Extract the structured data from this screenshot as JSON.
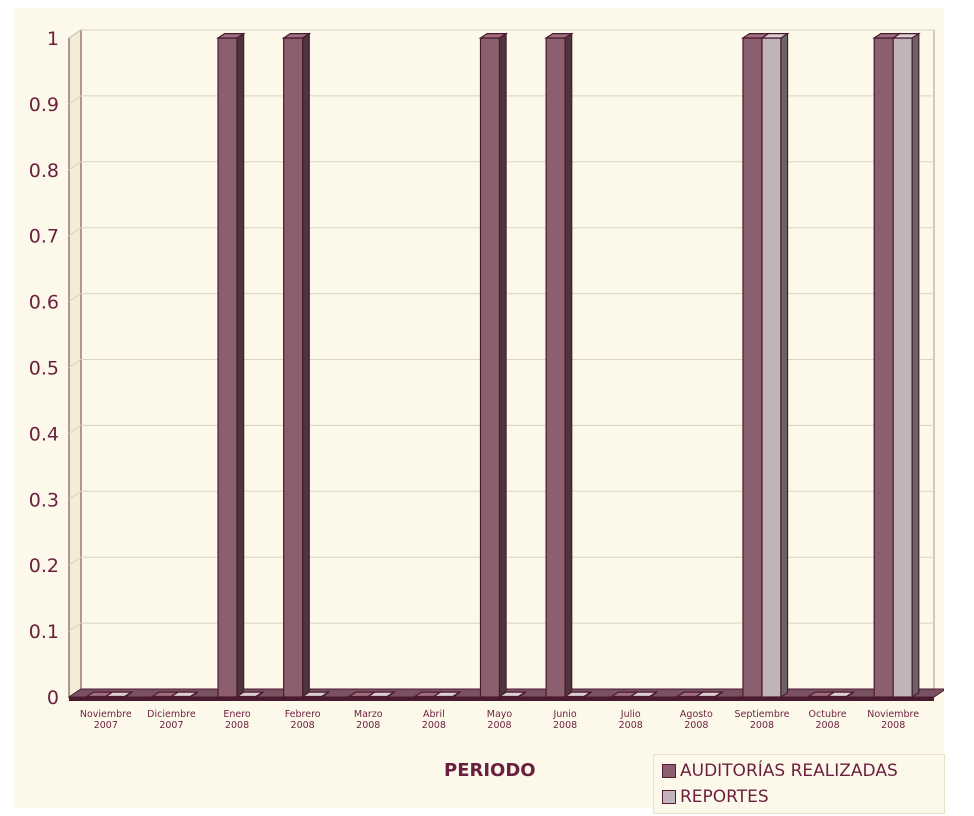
{
  "chart_data": {
    "type": "bar",
    "title": "",
    "xlabel": "PERIODO",
    "ylabel": "",
    "ylim": [
      0,
      1
    ],
    "yticks": [
      "0",
      "0.1",
      "0.2",
      "0.3",
      "0.4",
      "0.5",
      "0.6",
      "0.7",
      "0.8",
      "0.9",
      "1"
    ],
    "categories": [
      [
        "Noviembre",
        "2007"
      ],
      [
        "Diciembre",
        "2007"
      ],
      [
        "Enero",
        "2008"
      ],
      [
        "Febrero",
        "2008"
      ],
      [
        "Marzo",
        "2008"
      ],
      [
        "Abril",
        "2008"
      ],
      [
        "Mayo",
        "2008"
      ],
      [
        "Junio",
        "2008"
      ],
      [
        "Julio",
        "2008"
      ],
      [
        "Agosto",
        "2008"
      ],
      [
        "Septiembre",
        "2008"
      ],
      [
        "Octubre",
        "2008"
      ],
      [
        "Noviembre",
        "2008"
      ]
    ],
    "series": [
      {
        "name": "AUDITORÍAS REALIZADAS",
        "color": "#8c5f6f",
        "values": [
          0,
          0,
          1,
          1,
          0,
          0,
          1,
          1,
          0,
          0,
          1,
          0,
          1
        ]
      },
      {
        "name": "REPORTES",
        "color": "#c0b4ba",
        "values": [
          0,
          0,
          0,
          0,
          0,
          0,
          0,
          0,
          0,
          0,
          1,
          0,
          1
        ]
      }
    ],
    "grid": true,
    "legend_position": "bottom-right",
    "style": "3d-columns"
  }
}
